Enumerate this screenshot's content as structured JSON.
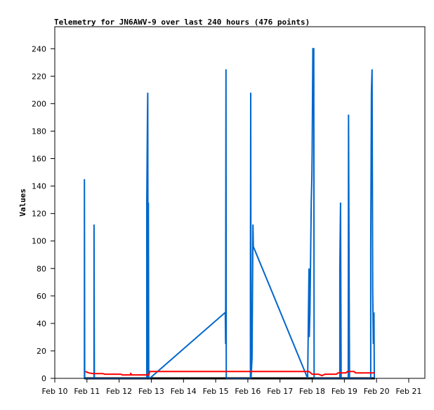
{
  "chart_data": {
    "type": "line",
    "title": "Telemetry for JN6AWV-9 over last 240 hours (476 points)",
    "xlabel": "",
    "ylabel": "Values",
    "xlim": [
      0,
      11
    ],
    "ylim": [
      0,
      256
    ],
    "x_unit": "days since Feb 10",
    "x_ticks": [
      "Feb 10",
      "Feb 11",
      "Feb 12",
      "Feb 13",
      "Feb 14",
      "Feb 15",
      "Feb 16",
      "Feb 17",
      "Feb 18",
      "Feb 19",
      "Feb 20",
      "Feb 21"
    ],
    "y_ticks": [
      0,
      20,
      40,
      60,
      80,
      100,
      120,
      140,
      160,
      180,
      200,
      220,
      240
    ],
    "series": [
      {
        "name": "zero",
        "color": "#000000",
        "points": [
          [
            0.92,
            0
          ],
          [
            9.95,
            0
          ]
        ]
      },
      {
        "name": "blue",
        "color": "#0066cc",
        "points": [
          [
            0.92,
            0
          ],
          [
            0.92,
            145
          ],
          [
            0.93,
            0
          ],
          [
            1.22,
            0
          ],
          [
            1.22,
            112
          ],
          [
            1.23,
            0
          ],
          [
            2.86,
            0
          ],
          [
            2.86,
            128
          ],
          [
            2.88,
            192
          ],
          [
            2.89,
            208
          ],
          [
            2.9,
            0
          ],
          [
            2.91,
            128
          ],
          [
            2.92,
            0
          ],
          [
            2.95,
            0
          ],
          [
            5.3,
            48
          ],
          [
            5.31,
            25
          ],
          [
            5.32,
            225
          ],
          [
            5.33,
            0
          ],
          [
            6.08,
            0
          ],
          [
            6.08,
            65
          ],
          [
            6.09,
            208
          ],
          [
            6.1,
            0
          ],
          [
            6.13,
            15
          ],
          [
            6.16,
            112
          ],
          [
            6.17,
            96
          ],
          [
            7.86,
            0
          ],
          [
            7.9,
            80
          ],
          [
            7.91,
            30
          ],
          [
            7.93,
            48
          ],
          [
            7.95,
            88
          ],
          [
            7.97,
            128
          ],
          [
            7.99,
            147
          ],
          [
            8.0,
            166
          ],
          [
            8.02,
            240
          ],
          [
            8.05,
            240
          ],
          [
            8.06,
            0
          ],
          [
            8.86,
            0
          ],
          [
            8.86,
            80
          ],
          [
            8.88,
            128
          ],
          [
            8.9,
            0
          ],
          [
            9.12,
            0
          ],
          [
            9.13,
            192
          ],
          [
            9.15,
            65
          ],
          [
            9.16,
            0
          ],
          [
            9.82,
            0
          ],
          [
            9.82,
            97
          ],
          [
            9.84,
            208
          ],
          [
            9.86,
            225
          ],
          [
            9.88,
            65
          ],
          [
            9.9,
            25
          ],
          [
            9.92,
            48
          ],
          [
            9.93,
            0
          ]
        ]
      },
      {
        "name": "red",
        "color": "#ff0000",
        "points": [
          [
            0.95,
            5
          ],
          [
            1.05,
            4
          ],
          [
            1.2,
            3.5
          ],
          [
            1.5,
            3.5
          ],
          [
            1.55,
            3
          ],
          [
            2.05,
            3
          ],
          [
            2.1,
            2.5
          ],
          [
            2.35,
            2.5
          ],
          [
            2.36,
            4
          ],
          [
            2.38,
            2.5
          ],
          [
            2.92,
            2.5
          ],
          [
            2.95,
            5
          ],
          [
            7.9,
            5
          ],
          [
            7.95,
            4
          ],
          [
            8.0,
            3
          ],
          [
            8.2,
            3
          ],
          [
            8.3,
            2
          ],
          [
            8.4,
            3
          ],
          [
            8.75,
            3
          ],
          [
            8.8,
            4
          ],
          [
            9.05,
            4
          ],
          [
            9.1,
            5
          ],
          [
            9.3,
            5
          ],
          [
            9.35,
            4
          ],
          [
            9.95,
            4
          ]
        ]
      }
    ]
  }
}
